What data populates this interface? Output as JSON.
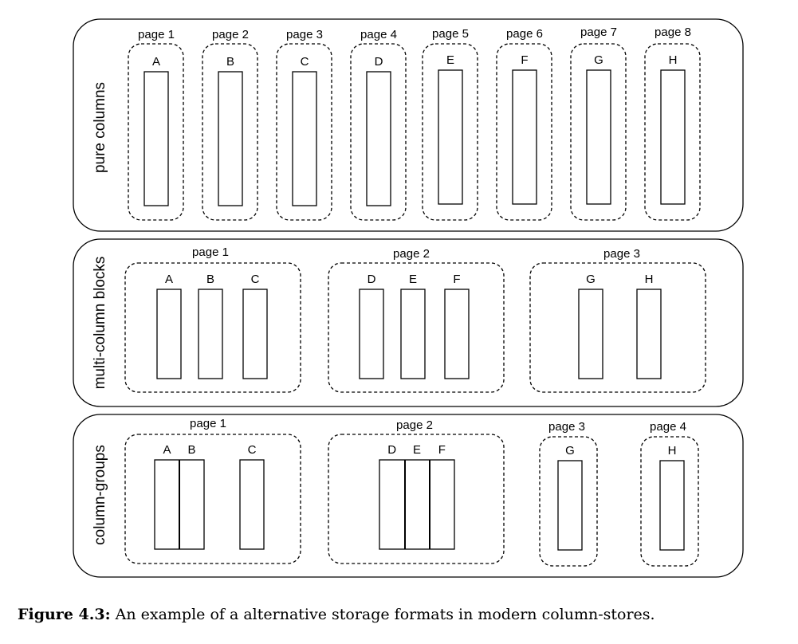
{
  "panels": [
    {
      "label": "pure columns",
      "pages": [
        {
          "label": "page 1",
          "groups": [
            [
              "A"
            ]
          ]
        },
        {
          "label": "page 2",
          "groups": [
            [
              "B"
            ]
          ]
        },
        {
          "label": "page 3",
          "groups": [
            [
              "C"
            ]
          ]
        },
        {
          "label": "page 4",
          "groups": [
            [
              "D"
            ]
          ]
        },
        {
          "label": "page 5",
          "groups": [
            [
              "E"
            ]
          ]
        },
        {
          "label": "page 6",
          "groups": [
            [
              "F"
            ]
          ]
        },
        {
          "label": "page 7",
          "groups": [
            [
              "G"
            ]
          ]
        },
        {
          "label": "page 8",
          "groups": [
            [
              "H"
            ]
          ]
        }
      ]
    },
    {
      "label": "multi-column blocks",
      "pages": [
        {
          "label": "page 1",
          "groups": [
            [
              "A"
            ],
            [
              "B"
            ],
            [
              "C"
            ]
          ]
        },
        {
          "label": "page 2",
          "groups": [
            [
              "D"
            ],
            [
              "E"
            ],
            [
              "F"
            ]
          ]
        },
        {
          "label": "page 3",
          "groups": [
            [
              "G"
            ],
            [
              "H"
            ]
          ]
        }
      ]
    },
    {
      "label": "column-groups",
      "pages": [
        {
          "label": "page 1",
          "groups": [
            [
              "A",
              "B"
            ],
            [
              "C"
            ]
          ]
        },
        {
          "label": "page 2",
          "groups": [
            [
              "D",
              "E",
              "F"
            ]
          ]
        },
        {
          "label": "page 3",
          "groups": [
            [
              "G"
            ]
          ]
        },
        {
          "label": "page 4",
          "groups": [
            [
              "H"
            ]
          ]
        }
      ]
    }
  ],
  "caption": {
    "label": "Figure 4.3:",
    "text": " An example of a alternative storage formats in modern column-stores."
  }
}
